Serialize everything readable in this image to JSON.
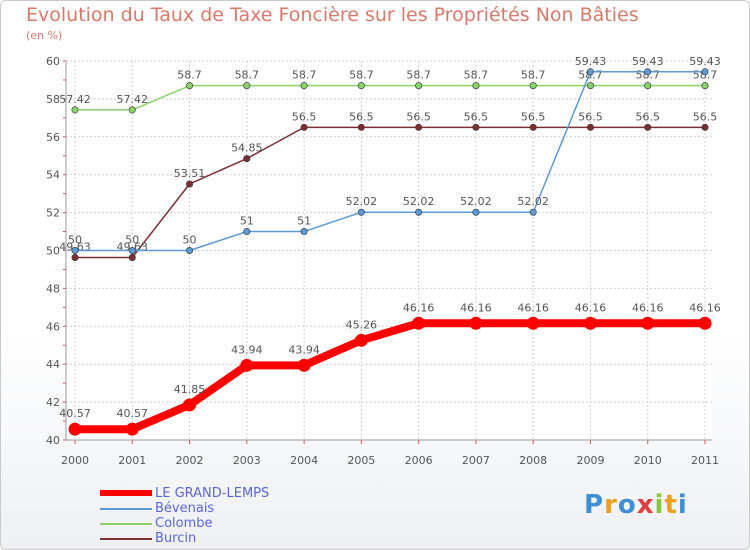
{
  "chart_data": {
    "type": "line",
    "title": "Evolution du Taux de Taxe Foncière sur les Propriétés Non Bâties",
    "ylabel": "(en %)",
    "xlabel": "",
    "categories": [
      "2000",
      "2001",
      "2002",
      "2003",
      "2004",
      "2005",
      "2006",
      "2007",
      "2008",
      "2009",
      "2010",
      "2011"
    ],
    "ylim": [
      40,
      60
    ],
    "yticks": [
      "40",
      "42",
      "44",
      "46",
      "48",
      "50",
      "52",
      "54",
      "56",
      "58",
      "60"
    ],
    "series": [
      {
        "name": "LE GRAND-LEMPS",
        "color": "#ff0000",
        "values": [
          40.57,
          40.57,
          41.85,
          43.94,
          43.94,
          45.26,
          46.16,
          46.16,
          46.16,
          46.16,
          46.16,
          46.16
        ],
        "labels": [
          "40.57",
          "40.57",
          "41.85",
          "43.94",
          "43.94",
          "45.26",
          "46.16",
          "46.16",
          "46.16",
          "46.16",
          "46.16",
          "46.16"
        ]
      },
      {
        "name": "Bévenais",
        "color": "#5b9bd5",
        "values": [
          50,
          50,
          50,
          51,
          51,
          52.02,
          52.02,
          52.02,
          52.02,
          59.43,
          59.43,
          59.43
        ],
        "labels": [
          "50",
          "50",
          "50",
          "51",
          "51",
          "52.02",
          "52.02",
          "52.02",
          "52.02",
          "59.43",
          "59.43",
          "59.43"
        ]
      },
      {
        "name": "Colombe",
        "color": "#88d468",
        "values": [
          57.42,
          57.42,
          58.7,
          58.7,
          58.7,
          58.7,
          58.7,
          58.7,
          58.7,
          58.7,
          58.7,
          58.7
        ],
        "labels": [
          "57.42",
          "57.42",
          "58.7",
          "58.7",
          "58.7",
          "58.7",
          "58.7",
          "58.7",
          "58.7",
          "58.7",
          "58.7",
          "58.7"
        ]
      },
      {
        "name": "Burcin",
        "color": "#7b2f33",
        "values": [
          49.63,
          49.63,
          53.51,
          54.85,
          56.5,
          56.5,
          56.5,
          56.5,
          56.5,
          56.5,
          56.5,
          56.5
        ],
        "labels": [
          "49.63",
          "49.63",
          "53.51",
          "54.85",
          "56.5",
          "56.5",
          "56.5",
          "56.5",
          "56.5",
          "56.5",
          "56.5",
          "56.5"
        ]
      }
    ]
  },
  "brand": {
    "text": "Proxiti",
    "letters": [
      "P",
      "r",
      "o",
      "x",
      "i",
      "t",
      "i"
    ],
    "colors": [
      "#3e8fd6",
      "#f0a020",
      "#3e8fd6",
      "#e23c3c",
      "#8cc63f",
      "#f0a020",
      "#3e8fd6"
    ]
  }
}
